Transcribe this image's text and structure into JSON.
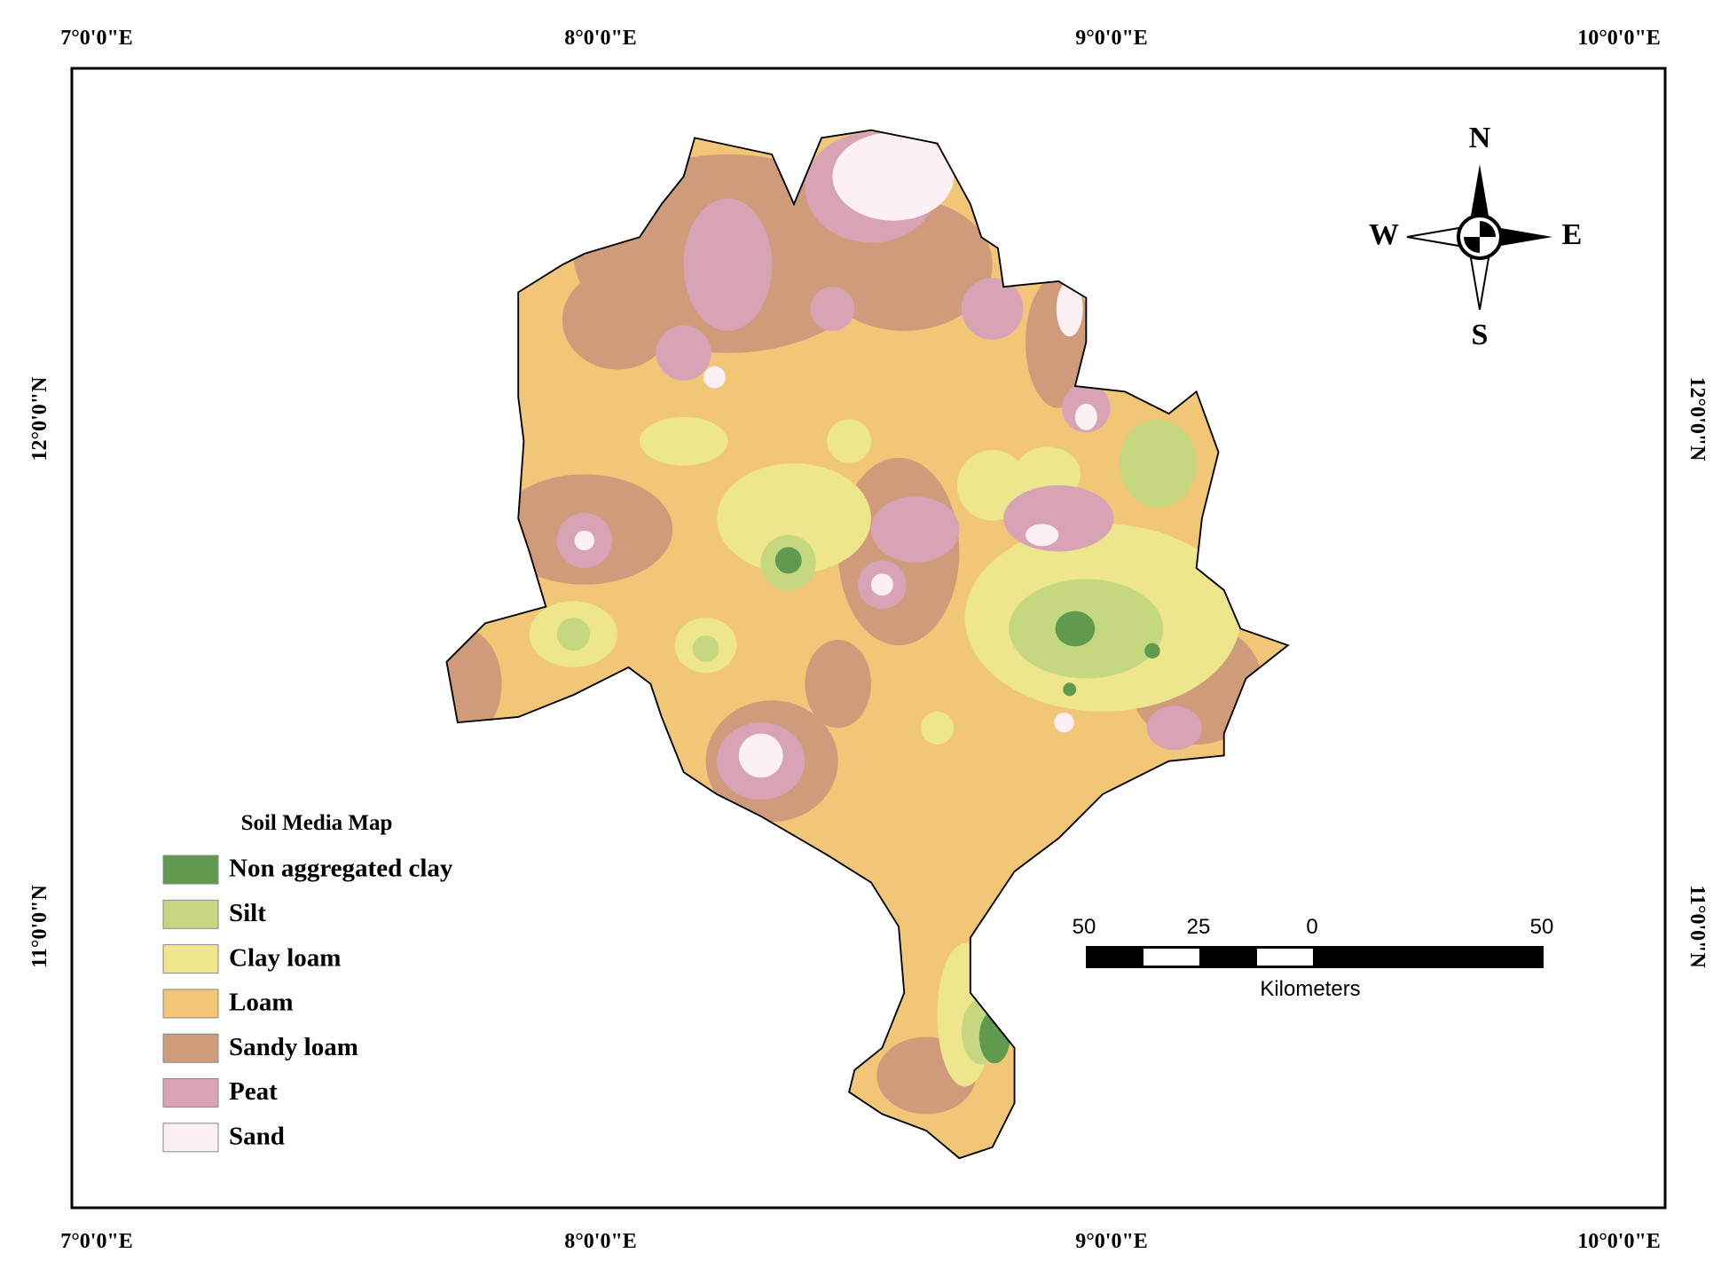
{
  "map": {
    "top_labels": [
      "7°0'0\"E",
      "8°0'0\"E",
      "9°0'0\"E",
      "10°0'0\"E"
    ],
    "bottom_labels": [
      "7°0'0\"E",
      "8°0'0\"E",
      "9°0'0\"E",
      "10°0'0\"E"
    ],
    "left_labels": [
      "12°0'0\"N",
      "11°0'0\"N"
    ],
    "right_labels": [
      "12°0'0\"N",
      "11°0'0\"N"
    ]
  },
  "legend": {
    "title": "Soil Media Map",
    "items": [
      {
        "label": "Non aggregated clay",
        "color": "#5f9a4f"
      },
      {
        "label": "Silt",
        "color": "#c5d77f"
      },
      {
        "label": "Clay loam",
        "color": "#ede68c"
      },
      {
        "label": "Loam",
        "color": "#f1c677"
      },
      {
        "label": "Sandy loam",
        "color": "#cf9b7b"
      },
      {
        "label": "Peat",
        "color": "#d8a3b5"
      },
      {
        "label": "Sand",
        "color": "#fcf0f4"
      }
    ]
  },
  "compass": {
    "north": "N",
    "south": "S",
    "west": "W",
    "east": "E"
  },
  "scale_bar": {
    "labels": [
      50,
      25,
      0,
      50
    ],
    "unit": "Kilometers"
  }
}
